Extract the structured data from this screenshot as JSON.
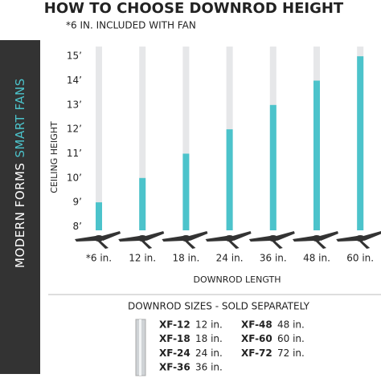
{
  "brand": {
    "name": "MODERN FORMS",
    "tagline": "SMART FANS"
  },
  "chart_data": {
    "type": "bar",
    "title": "HOW TO CHOOSE DOWNROD HEIGHT",
    "subtitle": "*6 IN. INCLUDED WITH FAN",
    "y_label": "CEILING HEIGHT",
    "x_label": "DOWNROD LENGTH",
    "categories": [
      "*6 in.",
      "12 in.",
      "18 in.",
      "24 in.",
      "36 in.",
      "48 in.",
      "60 in."
    ],
    "values": [
      9,
      10,
      11,
      12,
      13,
      14,
      15
    ],
    "color": "#4cc3cb",
    "track_color": "#e6e7e9",
    "ylim": [
      7.85,
      15.4
    ],
    "yticks": [
      {
        "value": 8,
        "label": "8’"
      },
      {
        "value": 9,
        "label": "9’"
      },
      {
        "value": 10,
        "label": "10’"
      },
      {
        "value": 11,
        "label": "11’"
      },
      {
        "value": 12,
        "label": "12’"
      },
      {
        "value": 13,
        "label": "13’"
      },
      {
        "value": 14,
        "label": "14’"
      },
      {
        "value": 15,
        "label": "15’"
      }
    ]
  },
  "sizes": {
    "title": "DOWNROD SIZES - SOLD SEPARATELY",
    "items": [
      {
        "code": "XF-12",
        "length": "12 in."
      },
      {
        "code": "XF-18",
        "length": "18 in."
      },
      {
        "code": "XF-24",
        "length": "24 in."
      },
      {
        "code": "XF-36",
        "length": "36 in."
      },
      {
        "code": "XF-48",
        "length": "48 in."
      },
      {
        "code": "XF-60",
        "length": "60 in."
      },
      {
        "code": "XF-72",
        "length": "72 in."
      }
    ]
  }
}
